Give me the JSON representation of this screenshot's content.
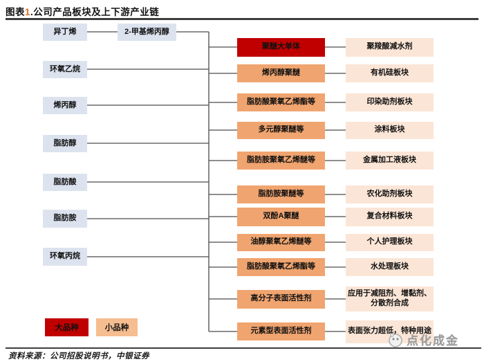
{
  "title": {
    "prefix": "图表",
    "number": "1",
    "rest": ".公司产品板块及上下游产业链"
  },
  "upstream": [
    {
      "label": "异丁烯"
    },
    {
      "label": "2-甲基烯丙醇"
    },
    {
      "label": "环氧乙烷"
    },
    {
      "label": "烯丙醇"
    },
    {
      "label": "脂肪醇"
    },
    {
      "label": "脂肪酸"
    },
    {
      "label": "脂肪胺"
    },
    {
      "label": "环氧丙烷"
    }
  ],
  "chain": {
    "rows": [
      {
        "product": "聚醚大单体",
        "segment": "聚羧酸减水剂",
        "major": true
      },
      {
        "product": "烯丙醇聚醚",
        "segment": "有机硅板块",
        "major": false
      },
      {
        "product": "脂肪酸聚氧乙烯酯等",
        "segment": "印染助剂板块",
        "major": false
      },
      {
        "product": "多元醇聚醚等",
        "segment": "涂料板块",
        "major": false
      },
      {
        "product": "脂肪胺聚氧乙烯醚等",
        "segment": "金属加工液板块",
        "major": false
      },
      {
        "product": "脂肪胺聚醚等",
        "segment": "农化助剂板块",
        "major": false
      },
      {
        "product": "双酚A聚醚",
        "segment": "复合材料板块",
        "major": false
      },
      {
        "product": "油醇聚氧乙烯醚等",
        "segment": "个人护理板块",
        "major": false
      },
      {
        "product": "脂肪酸聚氧乙烯酯等",
        "segment": "水处理板块",
        "major": false
      },
      {
        "product": "高分子表面活性剂",
        "segment": "应用于减阻剂、增黏剂、分散剂合成",
        "major": false
      },
      {
        "product": "元素型表面活性剂",
        "segment": "表面张力超低，特种用途",
        "major": false
      }
    ]
  },
  "legend": {
    "major_label": "大品种",
    "minor_label": "小品种"
  },
  "source": "资料来源：公司招股说明书，中银证券",
  "watermark": "点化成金",
  "colors": {
    "major_red": "#c00000",
    "product_orange": "#f0a46f",
    "legend_minor_orange": "#f5bd90",
    "segment_peach": "#fbe5d6",
    "upstream_blue": "#dce3ef",
    "line_gray": "#4a4a4a",
    "title_number_orange": "#e07020"
  }
}
